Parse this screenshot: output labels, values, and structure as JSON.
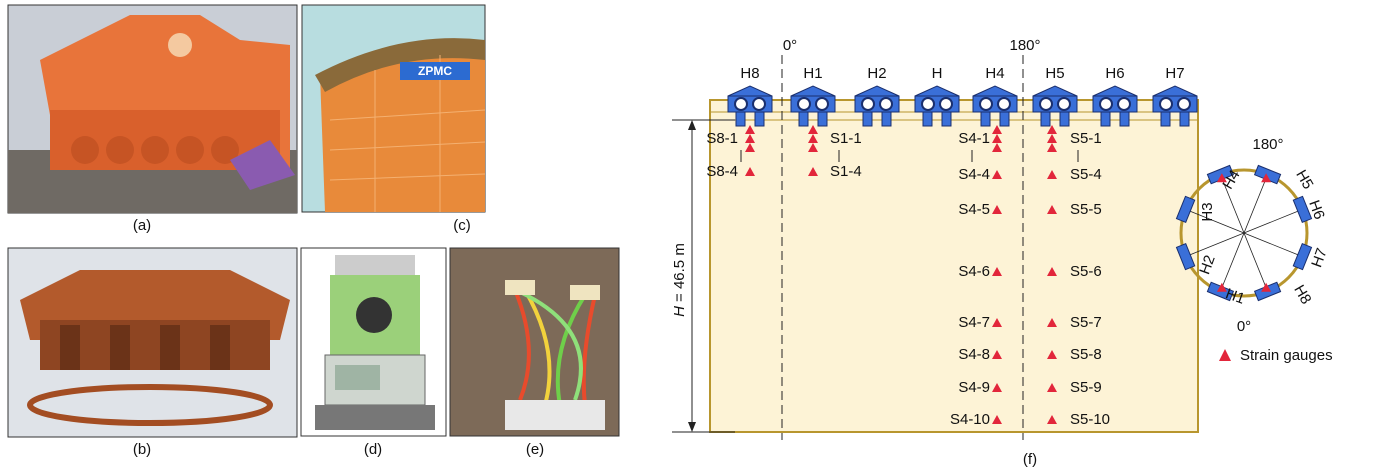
{
  "panels": {
    "a": "(a)",
    "b": "(b)",
    "c": "(c)",
    "d": "(d)",
    "e": "(e)",
    "f": "(f)"
  },
  "photo_text": {
    "logo": "ZPMC"
  },
  "diagram": {
    "angles": [
      "0°",
      "180°"
    ],
    "hammers": [
      "H8",
      "H1",
      "H2",
      "H",
      "H4",
      "H5",
      "H6",
      "H7"
    ],
    "height": {
      "symbol": "H",
      "value": "= 46.5 m"
    },
    "gauges_s8": [
      "S8-1",
      "S8-4"
    ],
    "gauges_s1": [
      "S1-1",
      "S1-4"
    ],
    "gauges_s4": [
      "S4-1",
      "S4-4",
      "S4-5",
      "S4-6",
      "S4-7",
      "S4-8",
      "S4-9",
      "S4-10"
    ],
    "gauges_s5": [
      "S5-1",
      "S5-4",
      "S5-5",
      "S5-6",
      "S5-7",
      "S5-8",
      "S5-9",
      "S5-10"
    ],
    "ring": {
      "top": "180°",
      "bottom": "0°",
      "labels": [
        "H4",
        "H5",
        "H3",
        "H6",
        "H2",
        "H7",
        "H1",
        "H8"
      ]
    },
    "legend": "Strain gauges"
  }
}
